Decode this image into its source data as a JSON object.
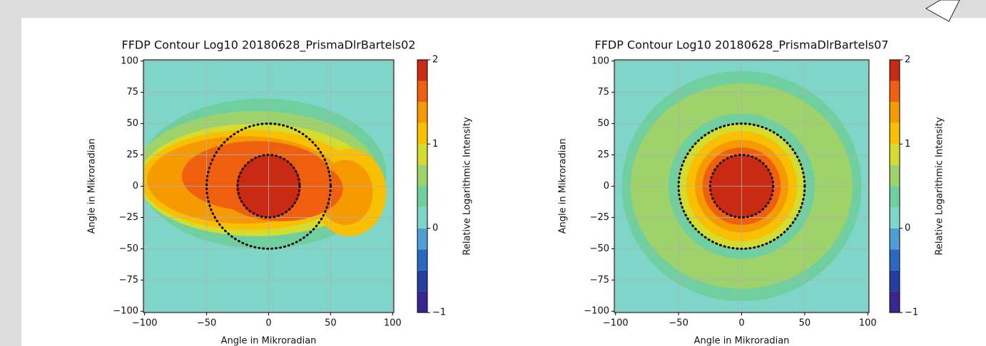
{
  "chart_data": [
    {
      "type": "contour",
      "title": "FFDP Contour Log10 20180628_PrismaDlrBartels02",
      "x_label": "Angle in Mikroradian",
      "y_label": "Angle in Mikroradian",
      "colorbar_label": "Relative Logarithmic Intensity",
      "xlim": [
        -101,
        101
      ],
      "ylim": [
        -101,
        101
      ],
      "xticks": [
        {
          "value": -100,
          "label": "−100"
        },
        {
          "value": -50,
          "label": "−50"
        },
        0,
        50,
        100
      ],
      "yticks": [
        {
          "value": -100,
          "label": "−100"
        },
        {
          "value": -75,
          "label": "−75"
        },
        {
          "value": -50,
          "label": "−50"
        },
        {
          "value": -25,
          "label": "−25"
        },
        0,
        25,
        50,
        75,
        100
      ],
      "levels": [
        -1,
        -0.75,
        -0.5,
        -0.25,
        0,
        0.25,
        0.5,
        0.75,
        1,
        1.25,
        1.5,
        1.75,
        2
      ],
      "colors": [
        "#3a2690",
        "#243fa0",
        "#2c68c0",
        "#4f9ed8",
        "#7fd6c8",
        "#6fcf9e",
        "#9dd36a",
        "#d4dc30",
        "#f8c000",
        "#f59a00",
        "#ee6010",
        "#c82a14"
      ],
      "clim": [
        -1,
        2
      ],
      "cticks": [
        {
          "value": -1,
          "label": "−1"
        },
        0,
        1,
        2
      ],
      "background_level": 0,
      "regions": [
        {
          "level": 0.25,
          "cx": -5,
          "cy": 10,
          "rx": 100,
          "ry": 60
        },
        {
          "level": 0.5,
          "cx": -10,
          "cy": 10,
          "rx": 98,
          "ry": 50
        },
        {
          "level": 0.75,
          "cx": -10,
          "cy": 5,
          "rx": 95,
          "ry": 45
        },
        {
          "level": 1,
          "cx": -15,
          "cy": 5,
          "rx": 88,
          "ry": 40
        },
        {
          "level": 1,
          "cx": 65,
          "cy": -5,
          "rx": 30,
          "ry": 35
        },
        {
          "level": 1.25,
          "cx": 62,
          "cy": -5,
          "rx": 22,
          "ry": 26
        },
        {
          "level": 1.25,
          "cx": -20,
          "cy": 5,
          "rx": 78,
          "ry": 35
        },
        {
          "level": 1.5,
          "cx": -10,
          "cy": 8,
          "rx": 60,
          "ry": 28
        },
        {
          "level": 1.5,
          "cx": 10,
          "cy": -2,
          "rx": 50,
          "ry": 26
        },
        {
          "level": 1.75,
          "cx": 0,
          "cy": 0,
          "rx": 26,
          "ry": 25
        }
      ],
      "circles": [
        25,
        50
      ],
      "grid": true
    },
    {
      "type": "contour",
      "title": "FFDP Contour Log10 20180628_PrismaDlrBartels07",
      "x_label": "Angle in Mikroradian",
      "y_label": "Angle in Mikroradian",
      "colorbar_label": "Relative Logarithmic Intensity",
      "xlim": [
        -101,
        101
      ],
      "ylim": [
        -101,
        101
      ],
      "xticks": [
        {
          "value": -100,
          "label": "−100"
        },
        {
          "value": -50,
          "label": "−50"
        },
        0,
        50,
        100
      ],
      "yticks": [
        {
          "value": -100,
          "label": "−100"
        },
        {
          "value": -75,
          "label": "−75"
        },
        {
          "value": -50,
          "label": "−50"
        },
        {
          "value": -25,
          "label": "−25"
        },
        0,
        25,
        50,
        75,
        100
      ],
      "levels": [
        -1,
        -0.75,
        -0.5,
        -0.25,
        0,
        0.25,
        0.5,
        0.75,
        1,
        1.25,
        1.5,
        1.75,
        2
      ],
      "colors": [
        "#3a2690",
        "#243fa0",
        "#2c68c0",
        "#4f9ed8",
        "#7fd6c8",
        "#6fcf9e",
        "#9dd36a",
        "#d4dc30",
        "#f8c000",
        "#f59a00",
        "#ee6010",
        "#c82a14"
      ],
      "clim": [
        -1,
        2
      ],
      "cticks": [
        {
          "value": -1,
          "label": "−1"
        },
        0,
        1,
        2
      ],
      "background_level": 0,
      "regions": [
        {
          "level": 0.25,
          "cx": 0,
          "cy": 0,
          "rx": 95,
          "ry": 92
        },
        {
          "level": 0.5,
          "cx": 0,
          "cy": 0,
          "rx": 88,
          "ry": 82
        },
        {
          "level": 0.25,
          "cx": 0,
          "cy": 0,
          "rx": 58,
          "ry": 58
        },
        {
          "level": 0.75,
          "cx": 0,
          "cy": 0,
          "rx": 50,
          "ry": 50
        },
        {
          "level": 1,
          "cx": 0,
          "cy": 0,
          "rx": 44,
          "ry": 44
        },
        {
          "level": 1.25,
          "cx": 0,
          "cy": 0,
          "rx": 37,
          "ry": 37
        },
        {
          "level": 1.5,
          "cx": 0,
          "cy": 0,
          "rx": 31,
          "ry": 31
        },
        {
          "level": 1.75,
          "cx": 0,
          "cy": 0,
          "rx": 25,
          "ry": 25
        }
      ],
      "circles": [
        25,
        50
      ],
      "grid": true
    }
  ]
}
